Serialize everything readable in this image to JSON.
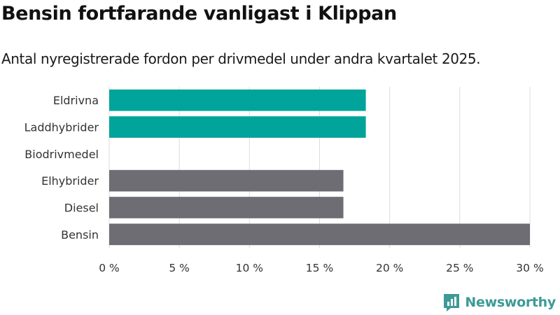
{
  "header": {
    "title": "Bensin fortfarande vanligast i Klippan",
    "subtitle": "Antal nyregistrerade fordon per drivmedel under andra kvartalet 2025."
  },
  "brand": {
    "name": "Newsworthy",
    "color": "#3d9a96",
    "icon": "newsworthy-logo-icon"
  },
  "chart_data": {
    "type": "bar",
    "orientation": "horizontal",
    "categories": [
      "Eldrivna",
      "Laddhybrider",
      "Biodrivmedel",
      "Elhybrider",
      "Diesel",
      "Bensin"
    ],
    "values": [
      18.3,
      18.3,
      0,
      16.7,
      16.7,
      30
    ],
    "colors": [
      "#00a49a",
      "#00a49a",
      "#00a49a",
      "#6e6d73",
      "#6e6d73",
      "#6e6d73"
    ],
    "xlim": [
      0,
      30
    ],
    "xticks": [
      0,
      5,
      10,
      15,
      20,
      25,
      30
    ],
    "xtick_labels": [
      "0 %",
      "5 %",
      "10 %",
      "15 %",
      "20 %",
      "25 %",
      "30 %"
    ],
    "grid": true,
    "title": "Bensin fortfarande vanligast i Klippan",
    "xlabel": "",
    "ylabel": ""
  }
}
